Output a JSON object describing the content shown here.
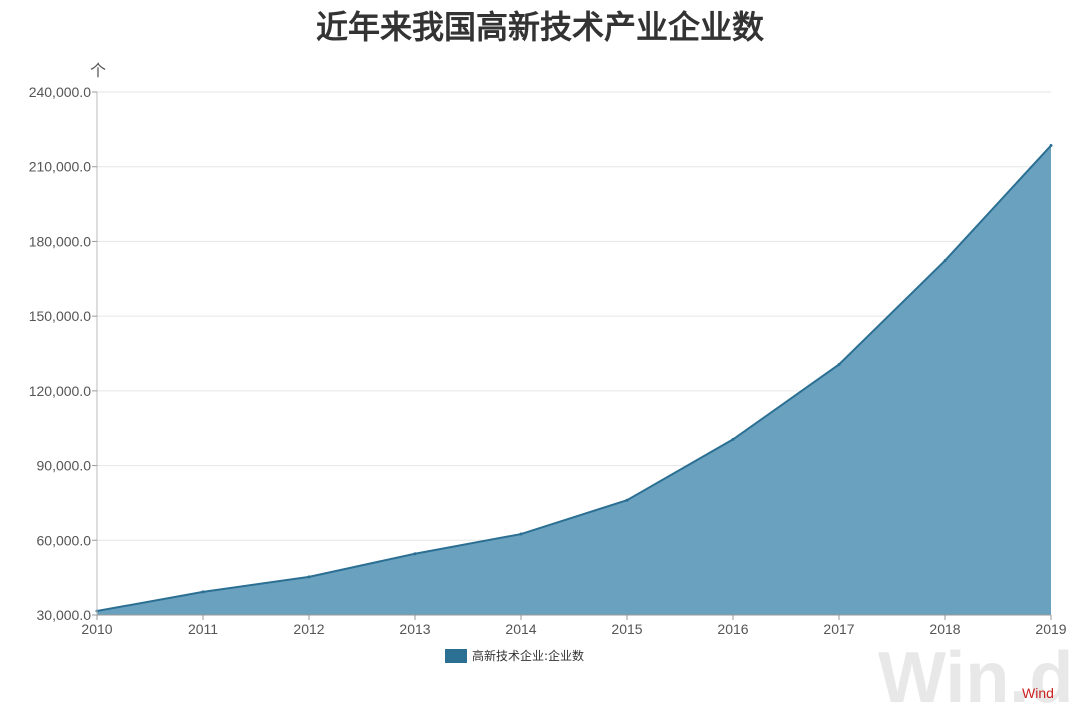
{
  "chart_data": {
    "type": "area",
    "title": "近年来我国高新技术产业企业数",
    "unit_label": "个",
    "x": [
      "2010",
      "2011",
      "2012",
      "2013",
      "2014",
      "2015",
      "2016",
      "2017",
      "2018",
      "2019"
    ],
    "series": [
      {
        "name": "高新技术企业:企业数",
        "values": [
          31600,
          39300,
          45300,
          54600,
          62500,
          76100,
          100500,
          130600,
          172300,
          218500
        ],
        "color": "#2b6f93",
        "fill": "#6aa1bf"
      }
    ],
    "yticks": [
      "30,000.0",
      "60,000.0",
      "90,000.0",
      "120,000.0",
      "150,000.0",
      "180,000.0",
      "210,000.0",
      "240,000.0"
    ],
    "ylim": [
      30000,
      240000
    ],
    "grid": true,
    "legend_position": "bottom-center"
  },
  "watermark": {
    "text": "Win.d",
    "brand": "Wind"
  }
}
